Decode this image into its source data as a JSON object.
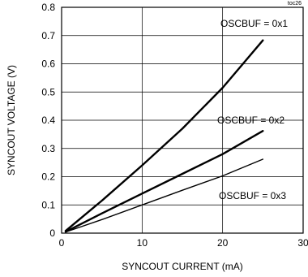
{
  "chart_data": {
    "type": "line",
    "tag": "toc26",
    "xlabel": "SYNCOUT CURRENT (mA)",
    "ylabel": "SYNCOUT VOLTAGE (V)",
    "xlim": [
      0,
      30
    ],
    "ylim": [
      0,
      0.8
    ],
    "grid": true,
    "x_ticks": [
      "0",
      "10",
      "20",
      "30"
    ],
    "y_ticks": [
      "0",
      "0.1",
      "0.2",
      "0.3",
      "0.4",
      "0.5",
      "0.6",
      "0.7",
      "0.8"
    ],
    "series": [
      {
        "name": "OSCBUF = 0x1",
        "x": [
          0.5,
          5,
          10,
          15,
          20,
          25
        ],
        "y": [
          0.008,
          0.115,
          0.24,
          0.37,
          0.515,
          0.683
        ]
      },
      {
        "name": "OSCBUF = 0x2",
        "x": [
          0.5,
          5,
          10,
          15,
          20,
          25
        ],
        "y": [
          0.005,
          0.07,
          0.14,
          0.21,
          0.28,
          0.362
        ]
      },
      {
        "name": "OSCBUF = 0x3",
        "x": [
          0.5,
          5,
          10,
          15,
          20,
          25
        ],
        "y": [
          0.004,
          0.048,
          0.1,
          0.152,
          0.203,
          0.262
        ]
      }
    ],
    "colors": {
      "line": "#000000",
      "grid": "#000000",
      "background": "#ffffff"
    }
  }
}
